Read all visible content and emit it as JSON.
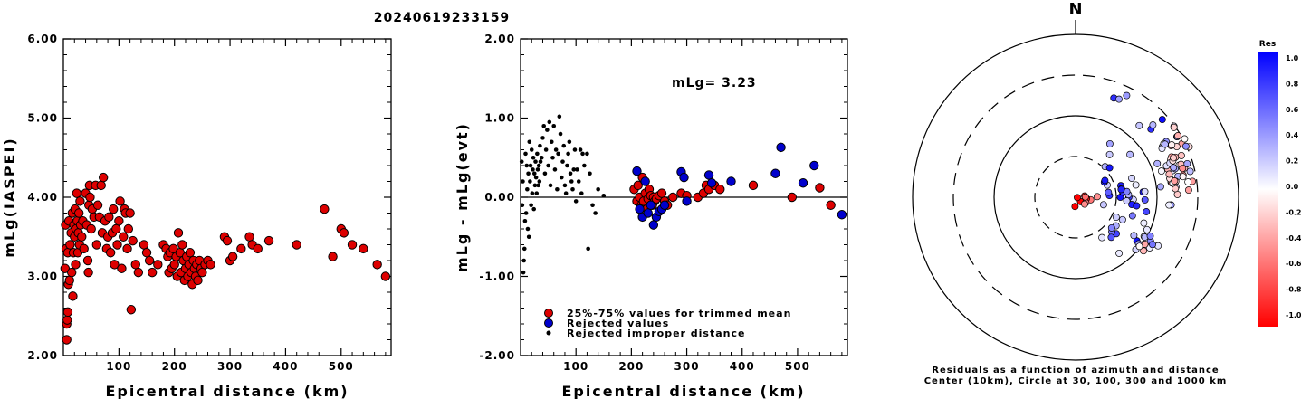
{
  "title": "20240619233159",
  "chart_data": [
    {
      "id": "p1",
      "type": "scatter",
      "xlabel": "Epicentral distance (km)",
      "ylabel": "mLg(IASPEI)",
      "xlim": [
        0,
        590
      ],
      "ylim": [
        2.0,
        6.0
      ],
      "yticks": [
        "2.00",
        "3.00",
        "4.00",
        "5.00",
        "6.00"
      ],
      "xticks": [
        "100",
        "200",
        "300",
        "400",
        "500"
      ],
      "points": [
        [
          3,
          3.1
        ],
        [
          4,
          3.65
        ],
        [
          5,
          3.35
        ],
        [
          6,
          2.4
        ],
        [
          6,
          2.2
        ],
        [
          7,
          2.45
        ],
        [
          8,
          2.55
        ],
        [
          8,
          3.3
        ],
        [
          9,
          2.9
        ],
        [
          10,
          3.7
        ],
        [
          11,
          2.95
        ],
        [
          12,
          3.4
        ],
        [
          14,
          3.55
        ],
        [
          15,
          3.05
        ],
        [
          16,
          3.8
        ],
        [
          17,
          2.75
        ],
        [
          18,
          3.3
        ],
        [
          19,
          3.65
        ],
        [
          20,
          3.5
        ],
        [
          21,
          3.85
        ],
        [
          22,
          3.15
        ],
        [
          23,
          3.6
        ],
        [
          24,
          4.05
        ],
        [
          25,
          3.7
        ],
        [
          26,
          3.3
        ],
        [
          27,
          3.55
        ],
        [
          28,
          3.8
        ],
        [
          29,
          3.4
        ],
        [
          30,
          3.95
        ],
        [
          31,
          3.65
        ],
        [
          33,
          3.5
        ],
        [
          35,
          3.7
        ],
        [
          37,
          3.35
        ],
        [
          40,
          4.05
        ],
        [
          42,
          3.65
        ],
        [
          44,
          3.2
        ],
        [
          45,
          3.05
        ],
        [
          46,
          3.9
        ],
        [
          47,
          4.15
        ],
        [
          48,
          4.0
        ],
        [
          50,
          3.6
        ],
        [
          52,
          3.85
        ],
        [
          55,
          3.75
        ],
        [
          58,
          4.15
        ],
        [
          60,
          3.4
        ],
        [
          62,
          3.9
        ],
        [
          65,
          3.75
        ],
        [
          68,
          4.15
        ],
        [
          70,
          3.55
        ],
        [
          72,
          4.25
        ],
        [
          75,
          3.7
        ],
        [
          78,
          3.35
        ],
        [
          80,
          3.5
        ],
        [
          82,
          3.75
        ],
        [
          85,
          3.3
        ],
        [
          88,
          3.55
        ],
        [
          90,
          3.85
        ],
        [
          92,
          3.15
        ],
        [
          95,
          3.6
        ],
        [
          97,
          3.4
        ],
        [
          100,
          3.7
        ],
        [
          102,
          3.95
        ],
        [
          105,
          3.1
        ],
        [
          108,
          3.5
        ],
        [
          110,
          3.85
        ],
        [
          112,
          3.8
        ],
        [
          115,
          3.35
        ],
        [
          117,
          3.6
        ],
        [
          120,
          3.8
        ],
        [
          122,
          2.58
        ],
        [
          125,
          3.45
        ],
        [
          130,
          3.15
        ],
        [
          135,
          3.05
        ],
        [
          145,
          3.4
        ],
        [
          150,
          3.3
        ],
        [
          155,
          3.2
        ],
        [
          160,
          3.05
        ],
        [
          170,
          3.15
        ],
        [
          180,
          3.4
        ],
        [
          185,
          3.35
        ],
        [
          188,
          3.25
        ],
        [
          190,
          3.05
        ],
        [
          192,
          3.3
        ],
        [
          195,
          3.1
        ],
        [
          198,
          3.35
        ],
        [
          200,
          3.15
        ],
        [
          203,
          3.25
        ],
        [
          205,
          3.0
        ],
        [
          207,
          3.55
        ],
        [
          210,
          3.3
        ],
        [
          212,
          3.05
        ],
        [
          214,
          3.4
        ],
        [
          216,
          3.2
        ],
        [
          218,
          2.95
        ],
        [
          220,
          3.1
        ],
        [
          222,
          3.25
        ],
        [
          224,
          3.0
        ],
        [
          226,
          3.15
        ],
        [
          228,
          3.3
        ],
        [
          230,
          3.05
        ],
        [
          232,
          2.9
        ],
        [
          234,
          3.2
        ],
        [
          236,
          3.1
        ],
        [
          238,
          3.0
        ],
        [
          240,
          3.15
        ],
        [
          242,
          2.95
        ],
        [
          245,
          3.2
        ],
        [
          248,
          3.1
        ],
        [
          250,
          3.05
        ],
        [
          255,
          3.15
        ],
        [
          260,
          3.2
        ],
        [
          265,
          3.15
        ],
        [
          290,
          3.5
        ],
        [
          295,
          3.45
        ],
        [
          300,
          3.2
        ],
        [
          305,
          3.25
        ],
        [
          320,
          3.35
        ],
        [
          335,
          3.5
        ],
        [
          340,
          3.4
        ],
        [
          350,
          3.35
        ],
        [
          370,
          3.45
        ],
        [
          420,
          3.4
        ],
        [
          470,
          3.85
        ],
        [
          485,
          3.25
        ],
        [
          500,
          3.6
        ],
        [
          505,
          3.55
        ],
        [
          520,
          3.4
        ],
        [
          540,
          3.35
        ],
        [
          565,
          3.15
        ],
        [
          580,
          3.0
        ]
      ]
    },
    {
      "id": "p2",
      "type": "scatter",
      "xlabel": "Epicentral distance (km)",
      "ylabel": "mLg - mLg(evt)",
      "xlim": [
        0,
        590
      ],
      "ylim": [
        -2.0,
        2.0
      ],
      "yticks": [
        "-2.00",
        "-1.00",
        "0.00",
        "1.00",
        "2.00"
      ],
      "xticks": [
        "100",
        "200",
        "300",
        "400",
        "500"
      ],
      "annotation": "mLg= 3.23",
      "legend": [
        "25%-75% values for trimmed mean",
        "Rejected values",
        "Rejected improper distance"
      ],
      "trimmed_points": [
        [
          205,
          0.1
        ],
        [
          210,
          -0.05
        ],
        [
          212,
          0.15
        ],
        [
          215,
          0.0
        ],
        [
          218,
          -0.1
        ],
        [
          220,
          0.25
        ],
        [
          222,
          -0.05
        ],
        [
          225,
          0.05
        ],
        [
          228,
          -0.15
        ],
        [
          230,
          -0.02
        ],
        [
          232,
          0.1
        ],
        [
          235,
          0.02
        ],
        [
          238,
          -0.1
        ],
        [
          240,
          0.0
        ],
        [
          242,
          -0.05
        ],
        [
          245,
          -0.02
        ],
        [
          250,
          0.02
        ],
        [
          255,
          0.05
        ],
        [
          260,
          -0.05
        ],
        [
          265,
          -0.1
        ],
        [
          275,
          0.0
        ],
        [
          290,
          0.05
        ],
        [
          300,
          0.02
        ],
        [
          320,
          0.0
        ],
        [
          330,
          0.05
        ],
        [
          335,
          0.15
        ],
        [
          340,
          0.1
        ],
        [
          350,
          0.15
        ],
        [
          360,
          0.1
        ],
        [
          420,
          0.15
        ],
        [
          490,
          0.0
        ],
        [
          540,
          0.12
        ],
        [
          560,
          -0.1
        ]
      ],
      "rejected_points": [
        [
          210,
          0.33
        ],
        [
          215,
          -0.15
        ],
        [
          220,
          -0.25
        ],
        [
          225,
          0.2
        ],
        [
          230,
          -0.2
        ],
        [
          235,
          -0.1
        ],
        [
          240,
          -0.35
        ],
        [
          245,
          -0.25
        ],
        [
          250,
          -0.18
        ],
        [
          255,
          -0.15
        ],
        [
          260,
          -0.1
        ],
        [
          290,
          0.32
        ],
        [
          295,
          0.25
        ],
        [
          300,
          -0.05
        ],
        [
          340,
          0.28
        ],
        [
          345,
          0.18
        ],
        [
          380,
          0.2
        ],
        [
          460,
          0.3
        ],
        [
          470,
          0.63
        ],
        [
          510,
          0.18
        ],
        [
          530,
          0.4
        ],
        [
          580,
          -0.22
        ]
      ],
      "improper_points": [
        [
          2,
          0.45
        ],
        [
          3,
          -0.1
        ],
        [
          4,
          0.2
        ],
        [
          5,
          -0.95
        ],
        [
          6,
          -0.8
        ],
        [
          7,
          -0.65
        ],
        [
          8,
          -0.3
        ],
        [
          9,
          0.55
        ],
        [
          10,
          -0.2
        ],
        [
          11,
          0.4
        ],
        [
          12,
          0.1
        ],
        [
          13,
          -0.4
        ],
        [
          14,
          0.3
        ],
        [
          15,
          -0.5
        ],
        [
          16,
          0.7
        ],
        [
          17,
          0.2
        ],
        [
          18,
          0.4
        ],
        [
          19,
          -0.1
        ],
        [
          20,
          0.6
        ],
        [
          21,
          0.05
        ],
        [
          22,
          0.35
        ],
        [
          23,
          0.5
        ],
        [
          24,
          -0.15
        ],
        [
          25,
          0.3
        ],
        [
          26,
          0.15
        ],
        [
          27,
          0.45
        ],
        [
          28,
          0.25
        ],
        [
          29,
          0.05
        ],
        [
          30,
          0.55
        ],
        [
          31,
          0.35
        ],
        [
          32,
          0.15
        ],
        [
          33,
          0.4
        ],
        [
          34,
          0.2
        ],
        [
          35,
          0.65
        ],
        [
          36,
          0.45
        ],
        [
          38,
          0.5
        ],
        [
          40,
          0.75
        ],
        [
          42,
          0.9
        ],
        [
          44,
          0.3
        ],
        [
          46,
          0.6
        ],
        [
          48,
          0.85
        ],
        [
          50,
          0.4
        ],
        [
          52,
          0.95
        ],
        [
          54,
          0.15
        ],
        [
          56,
          0.7
        ],
        [
          58,
          0.5
        ],
        [
          60,
          0.9
        ],
        [
          62,
          0.35
        ],
        [
          64,
          0.6
        ],
        [
          66,
          0.1
        ],
        [
          68,
          0.55
        ],
        [
          70,
          1.02
        ],
        [
          72,
          0.8
        ],
        [
          74,
          0.25
        ],
        [
          76,
          0.45
        ],
        [
          78,
          0.65
        ],
        [
          80,
          0.15
        ],
        [
          82,
          0.05
        ],
        [
          84,
          0.4
        ],
        [
          86,
          0.55
        ],
        [
          88,
          0.7
        ],
        [
          90,
          0.3
        ],
        [
          92,
          0.2
        ],
        [
          94,
          0.1
        ],
        [
          96,
          0.35
        ],
        [
          98,
          0.6
        ],
        [
          100,
          -0.05
        ],
        [
          102,
          0.35
        ],
        [
          105,
          0.2
        ],
        [
          108,
          0.6
        ],
        [
          110,
          0.05
        ],
        [
          112,
          0.55
        ],
        [
          115,
          0.4
        ],
        [
          120,
          0.55
        ],
        [
          122,
          -0.65
        ],
        [
          125,
          0.3
        ],
        [
          130,
          -0.1
        ],
        [
          135,
          -0.2
        ],
        [
          140,
          0.1
        ],
        [
          150,
          0.02
        ]
      ]
    },
    {
      "id": "p3",
      "type": "scatter",
      "north_label": "N",
      "caption": [
        "Residuals as a function of azimuth and distance",
        "Center (10km), Circle at 30, 100, 300 and 1000 km"
      ],
      "colorbar": {
        "title": "Res",
        "ticks": [
          "1.0",
          "0.8",
          "0.6",
          "0.4",
          "0.2",
          "0.0",
          "-0.2",
          "-0.4",
          "-0.6",
          "-0.8",
          "-1.0"
        ]
      }
    }
  ]
}
